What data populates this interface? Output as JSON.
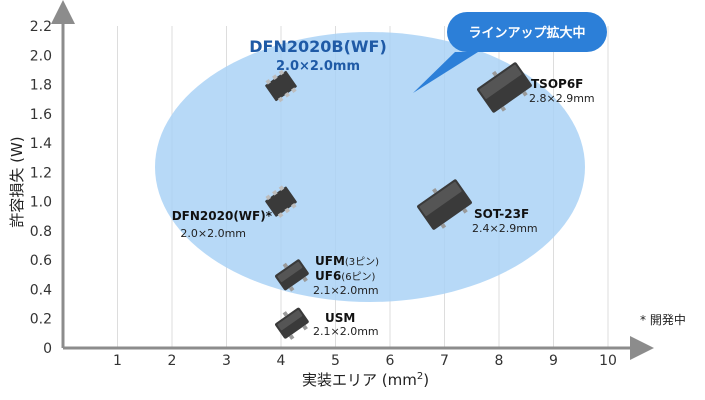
{
  "chart_data": {
    "type": "scatter",
    "title": "",
    "xlabel": "実装エリア (mm",
    "xlabel_sup": "2",
    "xlabel_close": ")",
    "ylabel": "許容損失 (W)",
    "xlim": [
      0,
      10
    ],
    "ylim": [
      0,
      2.2
    ],
    "x_ticks": [
      "1",
      "2",
      "3",
      "4",
      "5",
      "6",
      "7",
      "8",
      "9",
      "10"
    ],
    "y_ticks": [
      "0",
      "0.2",
      "0.4",
      "0.6",
      "0.8",
      "1.0",
      "1.2",
      "1.4",
      "1.6",
      "1.8",
      "2.0",
      "2.2"
    ],
    "grid": "vertical",
    "points": [
      {
        "name": "TSOP6F",
        "dim": "2.8×2.9mm",
        "x": 8.1,
        "y": 1.78,
        "shape": "sot"
      },
      {
        "name": "SOT-23F",
        "dim": "2.4×2.9mm",
        "x": 7.0,
        "y": 0.98,
        "shape": "sot"
      },
      {
        "name": "DFN2020(WF)*",
        "dim": "2.0×2.0mm",
        "x": 4.0,
        "y": 1.0,
        "shape": "dfn"
      },
      {
        "name": "DFN2020B(WF)",
        "dim": "2.0×2.0mm",
        "x": 4.0,
        "y": 1.79,
        "shape": "dfn"
      },
      {
        "name": "UFM",
        "pins": "(3ピン)",
        "dim": "",
        "x": 4.2,
        "y": 0.5,
        "shape": "sot"
      },
      {
        "name": "UF6",
        "pins": "(6ピン)",
        "dim": "2.1×2.0mm",
        "x": 4.2,
        "y": 0.5,
        "shape": "none"
      },
      {
        "name": "USM",
        "dim": "2.1×2.0mm",
        "x": 4.2,
        "y": 0.17,
        "shape": "sot"
      }
    ],
    "highlight": {
      "title": "DFN2020B(WF)",
      "subtitle": "2.0×2.0mm"
    },
    "callout": "ラインアップ拡大中",
    "footnote": "* 開発中"
  },
  "colors": {
    "axis": "#8c8c8c",
    "grid": "#dddddd",
    "ellipse": "#aad2f6",
    "callout": "#2c7fd8",
    "chip": "#3a3a3a"
  }
}
